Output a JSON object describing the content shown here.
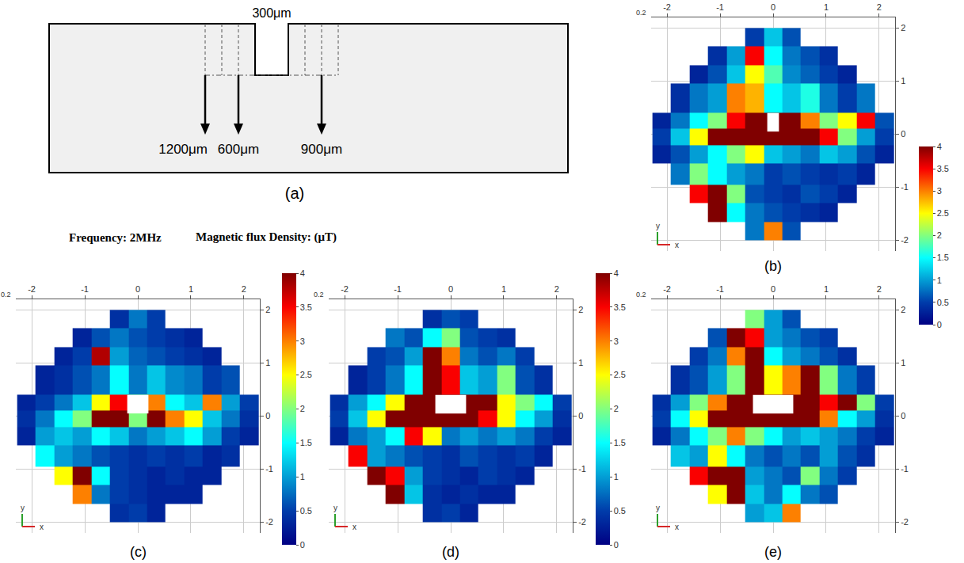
{
  "header": {
    "frequency": "Frequency: 2MHz",
    "quantity": "Magnetic flux Density: (μT)"
  },
  "schematic": {
    "label": "(a)",
    "notch": {
      "label": "300μm",
      "value": 300
    },
    "widths": [
      {
        "label": "1200μm",
        "value": 1200
      },
      {
        "label": "600μm",
        "value": 600
      },
      {
        "label": "900μm",
        "value": 900
      }
    ]
  },
  "chart_data": [
    {
      "type": "heatmap",
      "label": "(b)",
      "corner_label": "0.2",
      "axis_labels": {
        "x": "x",
        "y": "y"
      },
      "x_edges": [
        -2.275,
        -1.925,
        -1.575,
        -1.225,
        -0.875,
        -0.525,
        -0.175,
        0.175,
        0.525,
        0.875,
        1.225,
        1.575,
        1.925,
        2.275
      ],
      "y_edges": [
        -2.0,
        -1.65,
        -1.3,
        -0.95,
        -0.55,
        -0.2,
        0.1,
        0.4,
        0.95,
        1.3,
        1.65,
        2.0
      ],
      "z": [
        [
          null,
          null,
          null,
          null,
          null,
          0.8,
          3.0,
          0.6,
          null,
          null,
          null,
          null,
          null
        ],
        [
          null,
          null,
          null,
          4,
          1.5,
          0.8,
          0.6,
          0.5,
          0.4,
          0.3,
          null,
          null,
          null
        ],
        [
          null,
          null,
          3.5,
          4,
          2.0,
          0.6,
          0.5,
          0.4,
          0.6,
          0.5,
          0.3,
          null,
          null
        ],
        [
          null,
          0.8,
          2.0,
          1.5,
          1.0,
          0.8,
          0.5,
          0.6,
          0.5,
          0.4,
          0.5,
          0.3,
          null
        ],
        [
          0.3,
          0.6,
          1.0,
          1.5,
          2.0,
          2.5,
          1.2,
          1.0,
          0.8,
          1.2,
          1.0,
          0.6,
          0.3
        ],
        [
          0.5,
          1.2,
          2.5,
          4,
          4,
          4,
          4,
          4,
          4,
          3.5,
          2.0,
          1.0,
          0.5
        ],
        [
          0.3,
          0.8,
          1.5,
          2.0,
          3.5,
          4,
          4,
          4,
          3.0,
          2.0,
          2.5,
          3.5,
          0.6
        ],
        [
          null,
          0.4,
          0.8,
          1.0,
          3.0,
          2.8,
          1.5,
          1.2,
          1.6,
          0.8,
          0.5,
          0.8,
          null
        ],
        [
          null,
          null,
          0.3,
          0.6,
          1.2,
          2.5,
          1.8,
          0.9,
          0.7,
          0.5,
          0.3,
          null,
          null
        ],
        [
          null,
          null,
          null,
          0.4,
          1.0,
          3.5,
          1.5,
          0.8,
          0.6,
          0.4,
          null,
          null,
          null
        ],
        [
          null,
          null,
          null,
          null,
          null,
          0.5,
          1.2,
          0.6,
          null,
          null,
          null,
          null,
          null
        ]
      ],
      "notch": {
        "x": [
          -0.11,
          0.11
        ],
        "y": [
          0.05,
          0.4
        ]
      },
      "xlim": [
        -2.3,
        2.3
      ],
      "ylim": [
        -2.2,
        2.2
      ],
      "xticks": [
        -2,
        -1,
        0,
        1,
        2
      ],
      "yticks": [
        -2,
        -1,
        0,
        1,
        2
      ],
      "grid": true,
      "color": "Jet",
      "zlim": [
        0,
        4
      ],
      "zticks": [
        0,
        0.5,
        1,
        1.5,
        2,
        2.5,
        3,
        3.5,
        4
      ]
    },
    {
      "type": "heatmap",
      "label": "(c)",
      "corner_label": "0.2",
      "axis_labels": {
        "x": "x",
        "y": "y"
      },
      "x_edges": [
        -2.275,
        -1.925,
        -1.575,
        -1.225,
        -0.875,
        -0.525,
        -0.175,
        0.175,
        0.525,
        0.875,
        1.225,
        1.575,
        1.925,
        2.275
      ],
      "y_edges": [
        -2.0,
        -1.65,
        -1.3,
        -0.95,
        -0.55,
        -0.2,
        0.1,
        0.4,
        0.95,
        1.3,
        1.65,
        2.0
      ],
      "z": [
        [
          null,
          null,
          null,
          null,
          null,
          0.4,
          0.5,
          0.3,
          null,
          null,
          null,
          null,
          null
        ],
        [
          null,
          null,
          null,
          3.0,
          0.8,
          0.5,
          0.4,
          0.3,
          0.3,
          0.3,
          null,
          null,
          null
        ],
        [
          null,
          null,
          2.5,
          4,
          1.5,
          0.5,
          0.4,
          0.3,
          0.4,
          0.3,
          0.3,
          null,
          null
        ],
        [
          null,
          1.5,
          1.0,
          0.8,
          0.6,
          0.5,
          0.4,
          0.5,
          0.4,
          0.5,
          0.3,
          0.4,
          null
        ],
        [
          0.3,
          1.0,
          1.2,
          1.0,
          1.5,
          1.2,
          0.8,
          1.0,
          1.2,
          1.5,
          1.0,
          0.5,
          0.3
        ],
        [
          0.4,
          0.8,
          1.5,
          2.0,
          4,
          4,
          2.0,
          4,
          3.0,
          2.5,
          1.2,
          0.8,
          0.4
        ],
        [
          0.3,
          0.5,
          0.8,
          1.2,
          2.5,
          3.5,
          2.0,
          3.0,
          1.5,
          1.2,
          3.0,
          1.0,
          0.5
        ],
        [
          null,
          0.3,
          0.4,
          0.6,
          0.8,
          1.5,
          0.8,
          1.2,
          0.9,
          0.8,
          0.5,
          0.6,
          null
        ],
        [
          null,
          null,
          0.3,
          0.5,
          3.8,
          1.0,
          0.7,
          0.6,
          0.5,
          0.4,
          0.3,
          null,
          null
        ],
        [
          null,
          null,
          null,
          0.3,
          0.6,
          0.8,
          0.6,
          0.5,
          0.4,
          0.3,
          null,
          null,
          null
        ],
        [
          null,
          null,
          null,
          null,
          null,
          0.4,
          0.8,
          0.5,
          null,
          null,
          null,
          null,
          null
        ]
      ],
      "notch": {
        "x": [
          -0.2,
          0.2
        ],
        "y": [
          0.05,
          0.4
        ]
      },
      "xlim": [
        -2.3,
        2.3
      ],
      "ylim": [
        -2.2,
        2.2
      ],
      "xticks": [
        -2,
        -1,
        0,
        1,
        2
      ],
      "yticks": [
        -2,
        -1,
        0,
        1,
        2
      ],
      "grid": true,
      "color": "Jet",
      "zlim": [
        0,
        4
      ],
      "zticks": [
        0,
        0.5,
        1,
        1.5,
        2,
        2.5,
        3,
        3.5,
        4
      ]
    },
    {
      "type": "heatmap",
      "label": "(d)",
      "corner_label": "0.2",
      "axis_labels": {
        "x": "x",
        "y": "y"
      },
      "x_edges": [
        -2.275,
        -1.925,
        -1.575,
        -1.225,
        -0.875,
        -0.525,
        -0.175,
        0.175,
        0.525,
        0.875,
        1.225,
        1.575,
        1.925,
        2.275
      ],
      "y_edges": [
        -2.0,
        -1.65,
        -1.3,
        -0.95,
        -0.55,
        -0.2,
        0.1,
        0.4,
        0.95,
        1.3,
        1.65,
        2.0
      ],
      "z": [
        [
          null,
          null,
          null,
          null,
          null,
          0.4,
          0.5,
          0.3,
          null,
          null,
          null,
          null,
          null
        ],
        [
          null,
          null,
          null,
          4,
          1.2,
          0.4,
          0.3,
          0.4,
          0.3,
          0.3,
          null,
          null,
          null
        ],
        [
          null,
          null,
          4,
          3.5,
          1.0,
          0.5,
          0.4,
          0.3,
          0.5,
          0.4,
          0.3,
          null,
          null
        ],
        [
          null,
          3.5,
          1.0,
          0.8,
          0.6,
          0.5,
          0.4,
          0.6,
          0.5,
          0.4,
          0.5,
          0.3,
          null
        ],
        [
          0.3,
          0.8,
          1.0,
          1.5,
          3.5,
          2.5,
          0.8,
          1.0,
          0.8,
          1.0,
          0.8,
          0.5,
          0.3
        ],
        [
          0.5,
          1.2,
          2.5,
          4,
          4,
          4,
          4,
          4,
          3.5,
          2.5,
          1.5,
          1.0,
          0.4
        ],
        [
          0.4,
          1.0,
          1.5,
          2.5,
          4,
          4,
          4,
          4,
          4,
          2.5,
          2.0,
          1.5,
          0.5
        ],
        [
          null,
          0.3,
          0.5,
          0.8,
          1.5,
          4,
          3.5,
          1.2,
          1.0,
          2.0,
          0.6,
          0.4,
          null
        ],
        [
          null,
          null,
          0.5,
          0.6,
          1.0,
          4,
          3.0,
          0.8,
          0.6,
          0.8,
          0.5,
          null,
          null
        ],
        [
          null,
          null,
          null,
          0.8,
          0.6,
          1.5,
          2.0,
          0.6,
          0.5,
          0.4,
          null,
          null,
          null
        ],
        [
          null,
          null,
          null,
          null,
          null,
          0.4,
          0.6,
          0.5,
          null,
          null,
          null,
          null,
          null
        ]
      ],
      "notch": {
        "x": [
          -0.29,
          0.29
        ],
        "y": [
          0.05,
          0.4
        ]
      },
      "xlim": [
        -2.3,
        2.3
      ],
      "ylim": [
        -2.2,
        2.2
      ],
      "xticks": [
        -2,
        -1,
        0,
        1,
        2
      ],
      "yticks": [
        -2,
        -1,
        0,
        1,
        2
      ],
      "grid": true,
      "color": "Jet",
      "zlim": [
        0,
        4
      ],
      "zticks": [
        0,
        0.5,
        1,
        1.5,
        2,
        2.5,
        3,
        3.5,
        4
      ]
    },
    {
      "type": "heatmap",
      "label": "(e)",
      "corner_label": "0.2",
      "axis_labels": {
        "x": "x",
        "y": "y"
      },
      "x_edges": [
        -2.275,
        -1.925,
        -1.575,
        -1.225,
        -0.875,
        -0.525,
        -0.175,
        0.175,
        0.525,
        0.875,
        1.225,
        1.575,
        1.925,
        2.275
      ],
      "y_edges": [
        -2.0,
        -1.65,
        -1.3,
        -0.95,
        -0.55,
        -0.2,
        0.1,
        0.4,
        0.95,
        1.3,
        1.65,
        2.0
      ],
      "z": [
        [
          null,
          null,
          null,
          null,
          null,
          1.0,
          1.2,
          3.0,
          null,
          null,
          null,
          null,
          null
        ],
        [
          null,
          null,
          null,
          2.5,
          4,
          1.2,
          0.8,
          1.5,
          0.8,
          0.6,
          null,
          null,
          null
        ],
        [
          null,
          null,
          3.5,
          4,
          4,
          1.0,
          0.8,
          0.6,
          2.0,
          0.8,
          0.5,
          null,
          null
        ],
        [
          null,
          1.2,
          1.0,
          2.5,
          1.5,
          0.8,
          0.6,
          0.8,
          0.6,
          1.0,
          0.6,
          0.4,
          null
        ],
        [
          0.3,
          0.8,
          1.5,
          2.0,
          3.0,
          2.0,
          1.5,
          1.0,
          1.2,
          1.0,
          0.8,
          0.5,
          0.3
        ],
        [
          0.5,
          1.5,
          2.5,
          4,
          4,
          4,
          4,
          4,
          4,
          3.0,
          1.5,
          1.0,
          0.4
        ],
        [
          0.4,
          1.0,
          2.0,
          3.0,
          4,
          4,
          4,
          4,
          4,
          3.5,
          4,
          2.0,
          0.5
        ],
        [
          null,
          0.4,
          0.6,
          1.0,
          2.0,
          4,
          2.5,
          3.0,
          4,
          2.0,
          0.8,
          0.5,
          null
        ],
        [
          null,
          null,
          0.5,
          0.8,
          3.0,
          4,
          1.5,
          1.0,
          0.8,
          0.6,
          0.4,
          null,
          null
        ],
        [
          null,
          null,
          null,
          0.6,
          4,
          3.5,
          1.0,
          0.8,
          0.6,
          0.5,
          null,
          null,
          null
        ],
        [
          null,
          null,
          null,
          null,
          null,
          2.0,
          1.0,
          0.6,
          null,
          null,
          null,
          null,
          null
        ]
      ],
      "notch": {
        "x": [
          -0.38,
          0.38
        ],
        "y": [
          0.05,
          0.4
        ]
      },
      "xlim": [
        -2.3,
        2.3
      ],
      "ylim": [
        -2.2,
        2.2
      ],
      "xticks": [
        -2,
        -1,
        0,
        1,
        2
      ],
      "yticks": [
        -2,
        -1,
        0,
        1,
        2
      ],
      "grid": true,
      "color": "Jet",
      "zlim": [
        0,
        4
      ]
    }
  ]
}
